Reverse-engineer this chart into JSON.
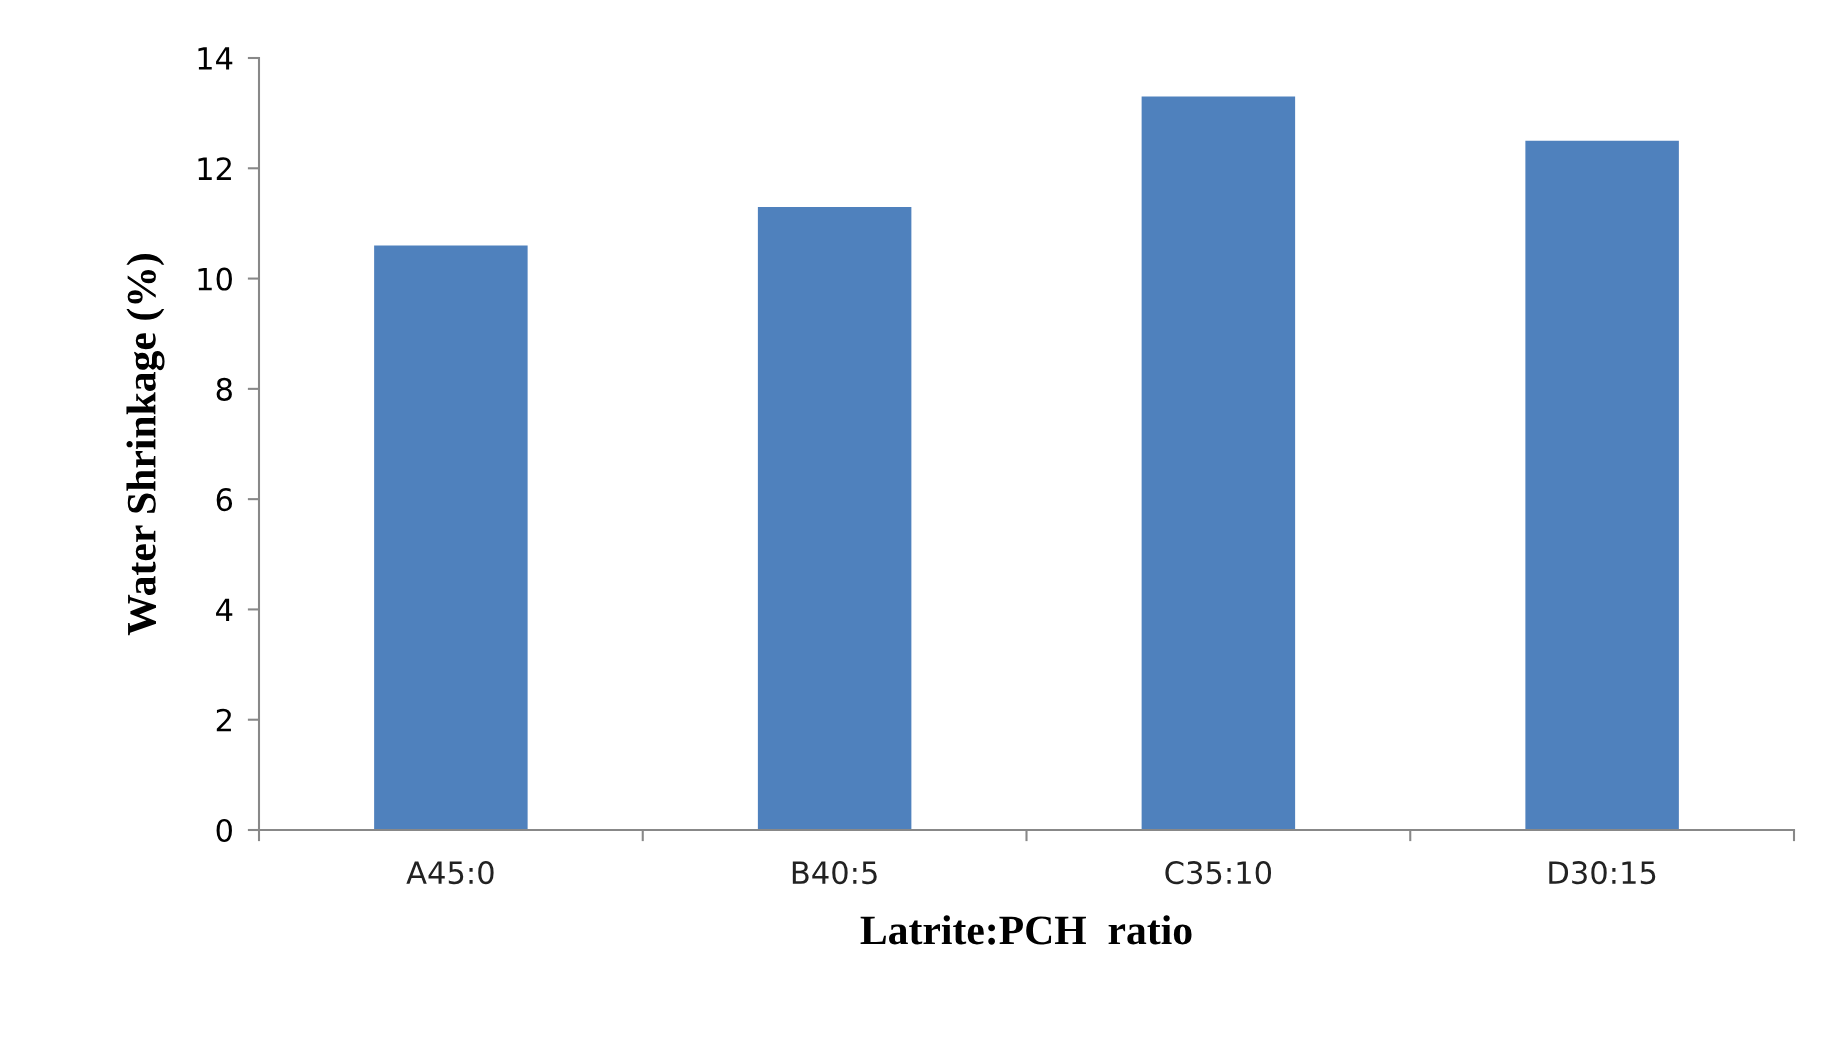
{
  "chart_data": {
    "type": "bar",
    "xlabel": "Latrite:PCH  ratio",
    "ylabel": "Water Shrinkage (%)",
    "categories": [
      "A45:0",
      "B40:5",
      "C35:10",
      "D30:15"
    ],
    "values": [
      10.6,
      11.3,
      13.3,
      12.5
    ],
    "color": "#4f81bd",
    "ylim": [
      0,
      14
    ],
    "yticks": [
      0,
      2,
      4,
      6,
      8,
      10,
      12,
      14
    ],
    "grid": false,
    "legend": false
  }
}
